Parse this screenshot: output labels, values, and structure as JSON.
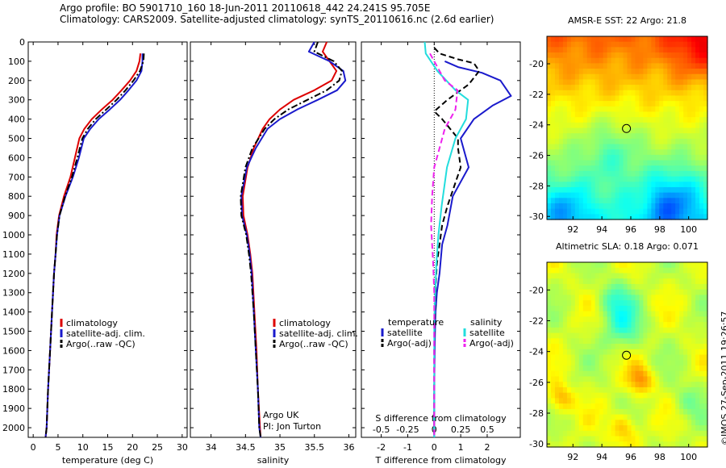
{
  "title_line1": "Argo profile: BO 5901710_160 18-Jun-2011 20110618_442 24.241S 95.705E",
  "title_line2": "Climatology: CARS2009. Satellite-adjusted climatology: synTS_20110616.nc (2.6d earlier)",
  "copyright": "©IMOS 27-Sep-2011 19:26:57",
  "colors": {
    "climatology": "#dd0000",
    "satellite": "#1a1acc",
    "argo": "#000000",
    "sal_sat": "#22dddd",
    "sal_argo": "#ee22ee"
  },
  "chart_data": [
    {
      "type": "line",
      "id": "temperature",
      "xlabel": "temperature (deg C)",
      "ylabel": "",
      "xlim": [
        -1,
        31
      ],
      "ylim": [
        2050,
        0
      ],
      "xticks": [
        "0",
        "5",
        "10",
        "15",
        "20",
        "25",
        "30"
      ],
      "yticks": [
        "0",
        "100",
        "200",
        "300",
        "400",
        "500",
        "600",
        "700",
        "800",
        "900",
        "1000",
        "1100",
        "1200",
        "1300",
        "1400",
        "1500",
        "1600",
        "1700",
        "1800",
        "1900",
        "2000"
      ],
      "legend": [
        "climatology",
        "satellite-adj. clim.",
        "Argo(..raw -QC)"
      ],
      "series": [
        {
          "name": "climatology",
          "color": "climatology",
          "dash": "",
          "x": [
            21.6,
            21.4,
            20.8,
            19.5,
            17.8,
            16.0,
            13.8,
            11.8,
            10.3,
            9.3,
            8.4,
            7.5,
            6.2,
            5.2,
            4.7,
            4.5,
            4.2,
            3.8,
            3.4,
            3.0,
            2.7,
            2.5
          ],
          "y": [
            60,
            100,
            150,
            200,
            250,
            300,
            350,
            400,
            450,
            500,
            600,
            700,
            800,
            900,
            1000,
            1100,
            1200,
            1400,
            1600,
            1800,
            2000,
            2050
          ]
        },
        {
          "name": "satellite-adj. clim.",
          "color": "satellite",
          "dash": "",
          "x": [
            22.0,
            22.0,
            21.8,
            20.8,
            19.2,
            17.5,
            15.4,
            13.2,
            11.5,
            10.2,
            9.2,
            8.0,
            6.5,
            5.3,
            4.8,
            4.5,
            4.2,
            3.8,
            3.4,
            3.0,
            2.7,
            2.5
          ],
          "y": [
            60,
            100,
            150,
            200,
            250,
            300,
            350,
            400,
            450,
            500,
            600,
            700,
            800,
            900,
            1000,
            1100,
            1200,
            1400,
            1600,
            1800,
            2000,
            2050
          ]
        },
        {
          "name": "Argo(..raw -QC)",
          "color": "argo",
          "dash": "8,3,2,3",
          "x": [
            22.3,
            22.2,
            21.5,
            20.2,
            18.6,
            16.8,
            14.7,
            12.6,
            11.0,
            9.9,
            8.9,
            7.8,
            6.4,
            5.3,
            4.8,
            4.5,
            4.2,
            3.8,
            3.4,
            3.0,
            2.7,
            2.5
          ],
          "y": [
            60,
            100,
            150,
            200,
            250,
            300,
            350,
            400,
            450,
            500,
            600,
            700,
            800,
            900,
            1000,
            1100,
            1200,
            1400,
            1600,
            1800,
            2000,
            2050
          ]
        }
      ]
    },
    {
      "type": "line",
      "id": "salinity",
      "xlabel": "salinity",
      "xlim": [
        33.7,
        36.1
      ],
      "ylim": [
        2050,
        0
      ],
      "xticks": [
        "34",
        "34.5",
        "35",
        "35.5",
        "36"
      ],
      "legend": [
        "climatology",
        "satellite-adj. clim.",
        "Argo(..raw -QC)"
      ],
      "annotation": [
        "Argo UK",
        "PI: Jon Turton"
      ],
      "series": [
        {
          "name": "climatology",
          "color": "climatology",
          "dash": "",
          "x": [
            35.68,
            35.62,
            35.72,
            35.82,
            35.75,
            35.5,
            35.2,
            35.0,
            34.85,
            34.75,
            34.62,
            34.53,
            34.46,
            34.47,
            34.53,
            34.57,
            34.6,
            34.63,
            34.66,
            34.68,
            34.71,
            34.72
          ],
          "y": [
            0,
            50,
            100,
            150,
            200,
            250,
            300,
            350,
            400,
            450,
            550,
            650,
            800,
            900,
            1000,
            1100,
            1200,
            1400,
            1600,
            1800,
            2000,
            2050
          ]
        },
        {
          "name": "satellite-adj. clim.",
          "color": "satellite",
          "dash": "",
          "x": [
            35.5,
            35.42,
            35.72,
            35.92,
            35.95,
            35.83,
            35.55,
            35.25,
            35.0,
            34.82,
            34.65,
            34.52,
            34.44,
            34.45,
            34.52,
            34.56,
            34.59,
            34.62,
            34.65,
            34.68,
            34.7,
            34.72
          ],
          "y": [
            0,
            50,
            100,
            150,
            200,
            250,
            300,
            350,
            400,
            450,
            550,
            650,
            800,
            900,
            1000,
            1100,
            1200,
            1400,
            1600,
            1800,
            2000,
            2050
          ]
        },
        {
          "name": "Argo(..raw -QC)",
          "color": "argo",
          "dash": "8,3,2,3",
          "x": [
            35.55,
            35.5,
            35.78,
            35.9,
            35.86,
            35.68,
            35.4,
            35.12,
            34.92,
            34.78,
            34.6,
            34.5,
            34.43,
            34.44,
            34.51,
            34.55,
            34.58,
            34.62,
            34.65,
            34.68,
            34.7,
            34.72
          ],
          "y": [
            0,
            50,
            100,
            150,
            200,
            250,
            300,
            350,
            400,
            450,
            550,
            650,
            800,
            900,
            1000,
            1100,
            1200,
            1400,
            1600,
            1800,
            2000,
            2050
          ]
        }
      ]
    },
    {
      "type": "line",
      "id": "differences",
      "xlabel": "T difference from climatology",
      "x2label": "S difference from climatology",
      "xlim": [
        -2.75,
        3.25
      ],
      "x2lim": [
        -0.6875,
        0.8125
      ],
      "ylim": [
        2050,
        0
      ],
      "xticks": [
        "-2",
        "-1",
        "0",
        "1",
        "2"
      ],
      "x2ticks": [
        "-0.5",
        "-0.25",
        "0",
        "0.25",
        "0.5"
      ],
      "legend_t_title": "temperature",
      "legend_s_title": "salinity",
      "legend": [
        "satellite",
        "Argo(-adj)",
        "satellite",
        "Argo(-adj)"
      ],
      "series": [
        {
          "name": "temperature satellite",
          "color": "satellite",
          "dash": "",
          "x": [
            0.4,
            0.9,
            1.8,
            2.5,
            2.9,
            2.2,
            1.5,
            1.0,
            1.3,
            0.7,
            0.5,
            0.3,
            0.2,
            0.1,
            0.05,
            0.03,
            0.02,
            0.01,
            0.0,
            0.0
          ],
          "y": [
            100,
            130,
            160,
            200,
            280,
            330,
            400,
            500,
            650,
            800,
            950,
            1050,
            1200,
            1300,
            1400,
            1500,
            1600,
            1700,
            1800,
            2050
          ]
        },
        {
          "name": "temperature Argo(-adj)",
          "color": "argo",
          "dash": "7,4",
          "x": [
            0.0,
            0.2,
            0.9,
            1.5,
            1.7,
            1.3,
            0.5,
            0.0,
            0.3,
            0.9,
            0.9,
            1.0,
            0.5,
            0.3,
            0.2,
            0.1,
            0.06,
            0.04,
            0.02,
            0.0,
            0.0
          ],
          "y": [
            30,
            60,
            90,
            110,
            150,
            220,
            300,
            360,
            400,
            500,
            550,
            650,
            850,
            950,
            1050,
            1150,
            1250,
            1350,
            1450,
            1600,
            2050
          ]
        },
        {
          "name": "salinity satellite",
          "color": "sal_sat",
          "dash": "",
          "x": [
            -0.09,
            -0.08,
            0.03,
            0.2,
            0.32,
            0.3,
            0.2,
            0.12,
            0.07,
            0.04,
            0.02,
            0.01,
            0.0,
            0.0,
            0.0
          ],
          "y": [
            0,
            60,
            150,
            250,
            300,
            400,
            500,
            650,
            850,
            1000,
            1150,
            1300,
            1450,
            1600,
            2050
          ]
        },
        {
          "name": "salinity Argo(-adj)",
          "color": "sal_argo",
          "dash": "7,4",
          "x": [
            -0.04,
            0.0,
            0.1,
            0.22,
            0.2,
            0.1,
            0.05,
            0.0,
            -0.02,
            -0.03,
            -0.01,
            0.0,
            0.0
          ],
          "y": [
            60,
            100,
            200,
            250,
            350,
            450,
            550,
            650,
            800,
            950,
            1150,
            1300,
            2050
          ]
        }
      ]
    },
    {
      "type": "heatmap",
      "id": "sst",
      "title": "AMSR-E SST: 22 Argo: 21.8",
      "xlim": [
        90.2,
        101.3
      ],
      "ylim": [
        -30.2,
        -18.2
      ],
      "xticks": [
        "92",
        "94",
        "96",
        "98",
        "100"
      ],
      "yticks": [
        "-20",
        "-22",
        "-24",
        "-26",
        "-28",
        "-30"
      ],
      "marker": [
        95.7,
        -24.24
      ]
    },
    {
      "type": "heatmap",
      "id": "sla",
      "title": "Altimetric SLA: 0.18 Argo: 0.071",
      "xlim": [
        90.2,
        101.3
      ],
      "ylim": [
        -30.2,
        -18.2
      ],
      "xticks": [
        "92",
        "94",
        "96",
        "98",
        "100"
      ],
      "yticks": [
        "-20",
        "-22",
        "-24",
        "-26",
        "-28",
        "-30"
      ],
      "marker": [
        95.7,
        -24.24
      ]
    }
  ]
}
